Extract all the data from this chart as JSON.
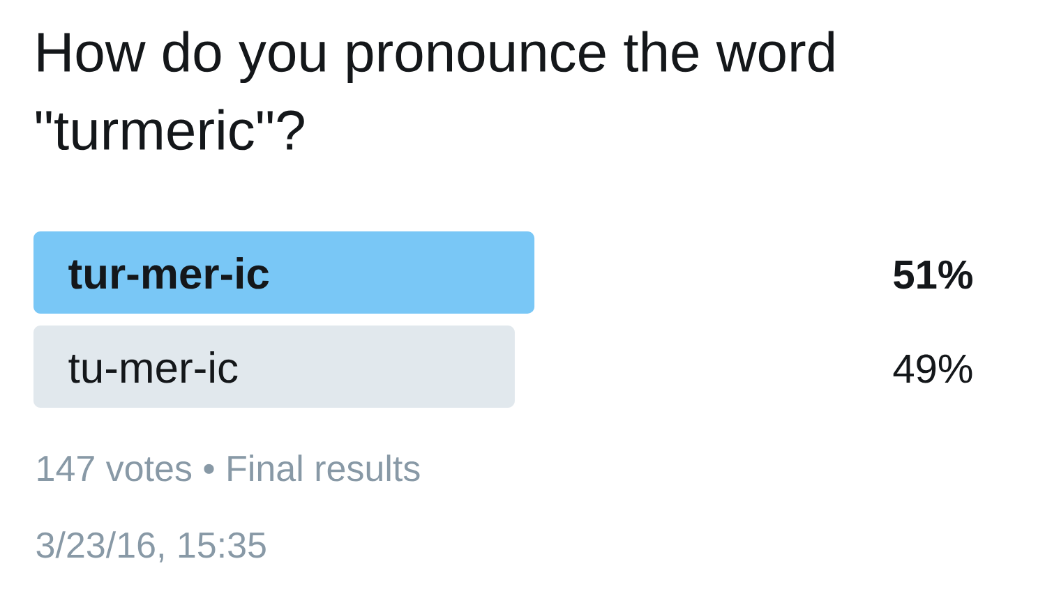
{
  "chart_data": {
    "type": "bar",
    "orientation": "horizontal",
    "title": "How do you pronounce the word \"turmeric\"?",
    "categories": [
      "tur-mer-ic",
      "tu-mer-ic"
    ],
    "values": [
      51,
      49
    ],
    "colors": [
      "#79c7f6",
      "#e1e8ed"
    ],
    "value_labels": [
      "51%",
      "49%"
    ],
    "annotations": [
      "147 votes • Final results",
      "3/23/16, 15:35"
    ]
  }
}
